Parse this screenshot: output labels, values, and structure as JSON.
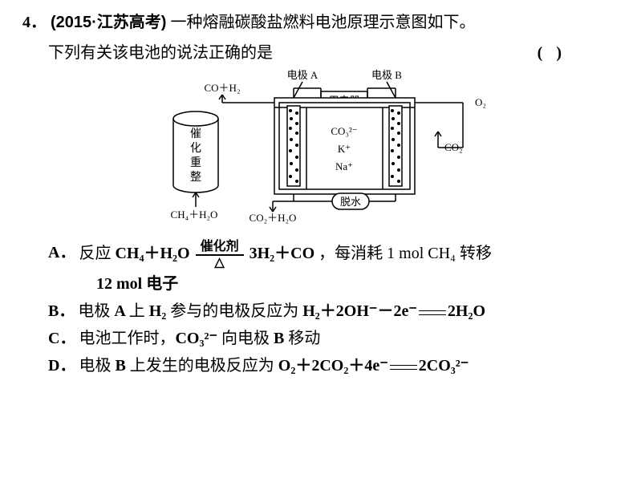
{
  "question": {
    "number": "4．",
    "source": "(2015·江苏高考)",
    "stem_part1": "一种熔融碳酸盐燃料电池原理示意图如下。",
    "stem_part2": "下列有关该电池的说法正确的是",
    "paren": "(      )"
  },
  "diagram": {
    "label_electrodeA": "电极 A",
    "label_electrodeB": "电极 B",
    "label_co_h2": "CO＋H₂",
    "label_device": "用电器",
    "label_O2": "O₂",
    "label_CO2": "CO₂",
    "label_catalyst1": "催",
    "label_catalyst2": "化",
    "label_catalyst3": "重",
    "label_catalyst4": "整",
    "ion1": "CO₃²⁻",
    "ion2": "K⁺",
    "ion3": "Na⁺",
    "label_ch4_h2o": "CH₄＋H₂O",
    "label_co2_h2o": "CO₂＋H₂O",
    "label_deshui": "脱水",
    "colors": {
      "stroke": "#000000",
      "fill_bg": "#ffffff",
      "dots": "#000000"
    }
  },
  "options": {
    "A": {
      "letter": "A．",
      "pre": "反应 ",
      "formula_left": "CH₄＋H₂O",
      "cond_top": "催化剂",
      "cond_bot": "△",
      "formula_right": "3H₂＋CO",
      "post": "，每消耗 1 mol CH₄ 转移",
      "line2": "12 mol 电子"
    },
    "B": {
      "letter": "B．",
      "text": "电极 A 上 H₂ 参与的电极反应为 H₂＋2OH⁻－2e⁻===2H₂O"
    },
    "C": {
      "letter": "C．",
      "text": "电池工作时，CO₃²⁻ 向电极 B 移动"
    },
    "D": {
      "letter": "D．",
      "text": "电极 B 上发生的电极反应为 O₂＋2CO₂＋4e⁻===2CO₃²⁻"
    }
  },
  "style": {
    "font_size_body": 20,
    "font_size_diagram": 13,
    "background": "#ffffff",
    "text_color": "#000000"
  }
}
